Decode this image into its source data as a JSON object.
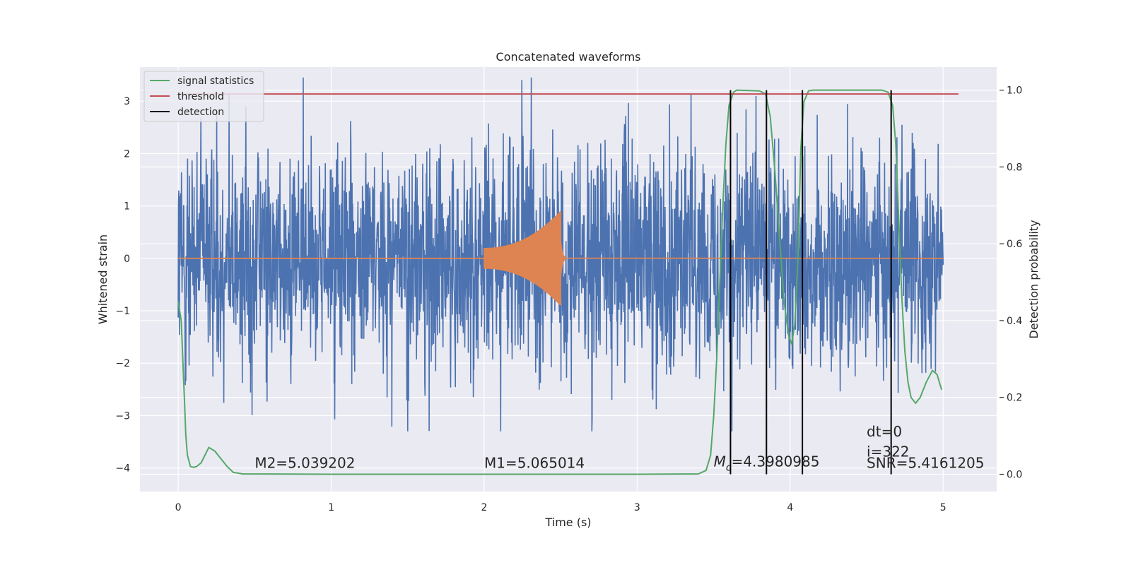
{
  "chart_data": {
    "type": "line",
    "title": "Concatenated waveforms",
    "xlabel": "Time (s)",
    "ylabel": "Whitened strain",
    "y2label": "Detection probability",
    "xlim": [
      -0.25,
      5.35
    ],
    "ylim": [
      -4.45,
      3.65
    ],
    "y2lim": [
      -0.045,
      1.06
    ],
    "xticks": [
      0,
      1,
      2,
      3,
      4,
      5
    ],
    "yticks": [
      -4,
      -3,
      -2,
      -1,
      0,
      1,
      2,
      3
    ],
    "y2ticks": [
      0.0,
      0.2,
      0.4,
      0.6,
      0.8,
      1.0
    ],
    "y2ticklabels": [
      "0.0",
      "0.2",
      "0.4",
      "0.6",
      "0.8",
      "1.0"
    ],
    "grid": true,
    "legend_position": "upper-left",
    "colors": {
      "background": "#eaeaf2",
      "grid": "#ffffff",
      "strain": "#4c72b0",
      "template": "#dd8452",
      "statistic": "#55a868",
      "threshold": "#c44e52",
      "detection": "#000000"
    },
    "series": [
      {
        "name": "",
        "axis": "left",
        "kind": "noise",
        "x_range": [
          0,
          5
        ],
        "y_range": [
          -3.3,
          3.45
        ],
        "note": "whitened detector strain, dense noise"
      },
      {
        "name": "",
        "axis": "left",
        "kind": "chirp",
        "x_range": [
          0,
          5
        ],
        "chirp_window": [
          2.0,
          2.5
        ],
        "peak_amplitude": 0.7
      },
      {
        "name": "signal statistics",
        "axis": "right",
        "points": [
          [
            0.0,
            0.45
          ],
          [
            0.02,
            0.4
          ],
          [
            0.03,
            0.3
          ],
          [
            0.04,
            0.2
          ],
          [
            0.05,
            0.1
          ],
          [
            0.06,
            0.05
          ],
          [
            0.08,
            0.02
          ],
          [
            0.1,
            0.018
          ],
          [
            0.12,
            0.02
          ],
          [
            0.15,
            0.03
          ],
          [
            0.2,
            0.07
          ],
          [
            0.24,
            0.06
          ],
          [
            0.28,
            0.04
          ],
          [
            0.32,
            0.02
          ],
          [
            0.36,
            0.005
          ],
          [
            0.42,
            0.001
          ],
          [
            1.0,
            0.0
          ],
          [
            2.0,
            0.0
          ],
          [
            3.0,
            0.0
          ],
          [
            3.4,
            0.001
          ],
          [
            3.45,
            0.01
          ],
          [
            3.48,
            0.05
          ],
          [
            3.5,
            0.15
          ],
          [
            3.52,
            0.3
          ],
          [
            3.54,
            0.5
          ],
          [
            3.56,
            0.7
          ],
          [
            3.58,
            0.86
          ],
          [
            3.6,
            0.96
          ],
          [
            3.63,
            0.995
          ],
          [
            3.65,
            1.0
          ],
          [
            3.8,
            0.998
          ],
          [
            3.84,
            0.99
          ],
          [
            3.87,
            0.93
          ],
          [
            3.9,
            0.79
          ],
          [
            3.93,
            0.62
          ],
          [
            3.96,
            0.45
          ],
          [
            3.99,
            0.36
          ],
          [
            4.01,
            0.34
          ],
          [
            4.03,
            0.39
          ],
          [
            4.05,
            0.55
          ],
          [
            4.07,
            0.85
          ],
          [
            4.09,
            0.97
          ],
          [
            4.12,
            0.998
          ],
          [
            4.15,
            1.0
          ],
          [
            4.6,
            1.0
          ],
          [
            4.64,
            0.995
          ],
          [
            4.67,
            0.96
          ],
          [
            4.69,
            0.86
          ],
          [
            4.71,
            0.66
          ],
          [
            4.73,
            0.46
          ],
          [
            4.75,
            0.32
          ],
          [
            4.77,
            0.24
          ],
          [
            4.79,
            0.2
          ],
          [
            4.82,
            0.185
          ],
          [
            4.85,
            0.2
          ],
          [
            4.89,
            0.24
          ],
          [
            4.93,
            0.27
          ],
          [
            4.96,
            0.26
          ],
          [
            4.99,
            0.22
          ]
        ]
      },
      {
        "name": "threshold",
        "axis": "right",
        "value": 0.99,
        "x_range": [
          0,
          5.1
        ]
      },
      {
        "name": "detection",
        "axis": "right",
        "times": [
          3.61,
          3.845,
          4.08,
          4.66
        ],
        "y_range": [
          0.0,
          1.0
        ]
      }
    ],
    "legend": [
      "signal statistics",
      "threshold",
      "detection"
    ],
    "annotations": [
      {
        "text": "M2=5.039202",
        "x": 0.5,
        "y": -4.0
      },
      {
        "text": "M1=5.065014",
        "x": 2.0,
        "y": -4.0
      },
      {
        "text": "dt=0",
        "x": 4.5,
        "y": -3.4
      },
      {
        "text": "i=322",
        "x": 4.5,
        "y": -3.78
      },
      {
        "text": "SNR=5.4161205",
        "x": 4.5,
        "y": -4.0
      }
    ],
    "chirp_mass_annotation": {
      "symbol": "M",
      "subscript": "c",
      "value": "=4.3980985",
      "x": 3.5,
      "y": -4.0
    }
  }
}
